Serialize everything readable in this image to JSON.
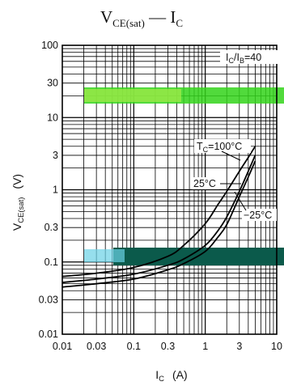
{
  "chart_data": {
    "type": "line",
    "title": {
      "main": "V",
      "sub": "CE(sat)",
      "sep": " — ",
      "main2": "I",
      "sub2": "C"
    },
    "xlabel": {
      "main": "I",
      "sub": "C",
      "unit": "(A)"
    },
    "ylabel": {
      "main": "V",
      "sub": "CE(sat)",
      "unit": "(V)"
    },
    "x_scale": "log",
    "y_scale": "log",
    "xlim": [
      0.01,
      10
    ],
    "ylim": [
      0.01,
      100
    ],
    "x_ticks": [
      0.01,
      0.03,
      0.1,
      0.3,
      1,
      3,
      10
    ],
    "x_tick_labels": [
      "0.01",
      "0.03",
      "0.1",
      "0.3",
      "1",
      "3",
      "10"
    ],
    "y_ticks": [
      0.01,
      0.03,
      0.1,
      0.3,
      1,
      3,
      10,
      30,
      100
    ],
    "y_tick_labels": [
      "0.01",
      "0.03",
      "0.1",
      "0.3",
      "1",
      "3",
      "10",
      "30",
      "100"
    ],
    "grid": true,
    "condition": {
      "main": "I",
      "sub1": "C",
      "mid": "/I",
      "sub2": "B",
      "tail": "=40"
    },
    "series": [
      {
        "name": "TC=100°C",
        "label": {
          "pre": "T",
          "sub": "C",
          "post": "=100°C"
        },
        "x": [
          0.01,
          0.03,
          0.1,
          0.3,
          0.5,
          1,
          1.5,
          2,
          3,
          4,
          5
        ],
        "y": [
          0.063,
          0.07,
          0.084,
          0.12,
          0.17,
          0.34,
          0.62,
          0.95,
          1.8,
          2.8,
          4.0
        ]
      },
      {
        "name": "25°C",
        "label": {
          "pre": "",
          "sub": "",
          "post": "25°C"
        },
        "x": [
          0.01,
          0.03,
          0.1,
          0.3,
          0.5,
          1,
          1.5,
          2,
          3,
          4,
          5
        ],
        "y": [
          0.052,
          0.058,
          0.068,
          0.09,
          0.11,
          0.17,
          0.27,
          0.42,
          0.95,
          1.8,
          3.0
        ]
      },
      {
        "name": "-25°C",
        "label": {
          "pre": "",
          "sub": "",
          "post": "−25°C"
        },
        "x": [
          0.01,
          0.03,
          0.1,
          0.3,
          0.5,
          1,
          1.5,
          2,
          3,
          4,
          5
        ],
        "y": [
          0.045,
          0.05,
          0.058,
          0.078,
          0.095,
          0.14,
          0.22,
          0.33,
          0.8,
          1.5,
          2.5
        ]
      }
    ]
  }
}
